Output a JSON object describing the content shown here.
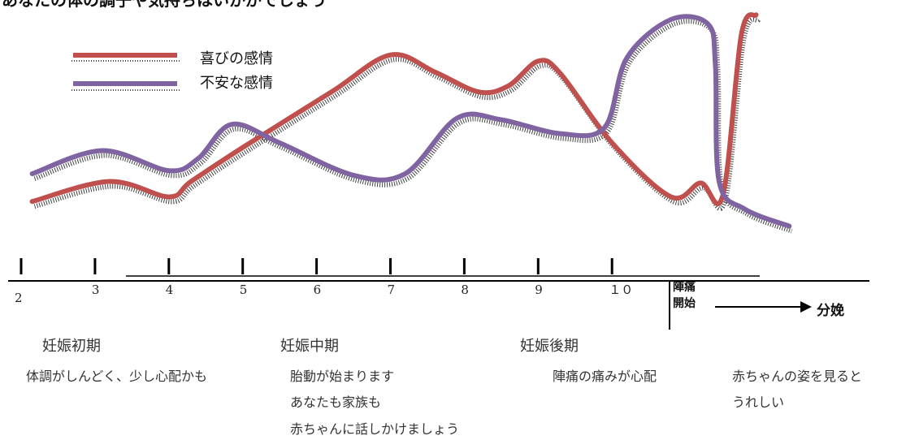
{
  "header": {
    "title": "あなたの体の調子や気持ちはいかがでしょう"
  },
  "legend": {
    "joy": "喜びの感情",
    "anxiety": "不安な感情"
  },
  "timeline": {
    "ticks": [
      "2",
      "3",
      "4",
      "5",
      "6",
      "7",
      "8",
      "9",
      "１０"
    ],
    "labor_start": [
      "陣痛",
      "開始"
    ],
    "delivery": "分娩"
  },
  "phases": [
    {
      "name": "妊娠初期",
      "lines": [
        "体調がしんどく、少し心配かも"
      ]
    },
    {
      "name": "妊娠中期",
      "lines": [
        "胎動が始まります",
        "あなたも家族も",
        "赤ちゃんに話しかけましょう"
      ]
    },
    {
      "name": "妊娠後期",
      "lines": [
        "陣痛の痛みが心配"
      ]
    },
    {
      "name": "",
      "lines": [
        "赤ちゃんの姿を見ると",
        "うれしい"
      ]
    }
  ],
  "chart_data": {
    "type": "line",
    "x_unit": "month",
    "x_ticks": [
      2,
      3,
      4,
      5,
      6,
      7,
      8,
      9,
      10
    ],
    "series": [
      {
        "name": "喜びの感情",
        "color": "#c0504d",
        "points": [
          [
            2.15,
            22
          ],
          [
            3.2,
            35
          ],
          [
            4.0,
            25
          ],
          [
            4.3,
            35
          ],
          [
            5.0,
            57
          ],
          [
            6.2,
            93
          ],
          [
            7.0,
            117
          ],
          [
            7.6,
            106
          ],
          [
            8.2,
            93
          ],
          [
            8.6,
            97
          ],
          [
            9.0,
            113
          ],
          [
            9.3,
            105
          ],
          [
            10.0,
            60
          ],
          [
            10.8,
            25
          ],
          [
            11.2,
            34
          ],
          [
            11.5,
            26
          ],
          [
            11.75,
            130
          ],
          [
            11.95,
            143
          ]
        ]
      },
      {
        "name": "不安な感情",
        "color": "#8064a2",
        "points": [
          [
            2.15,
            40
          ],
          [
            3.1,
            55
          ],
          [
            4.0,
            42
          ],
          [
            4.4,
            50
          ],
          [
            4.85,
            72
          ],
          [
            5.5,
            60
          ],
          [
            6.5,
            39
          ],
          [
            7.2,
            40
          ],
          [
            7.9,
            76
          ],
          [
            8.5,
            75
          ],
          [
            9.3,
            66
          ],
          [
            9.9,
            70
          ],
          [
            10.2,
            115
          ],
          [
            10.8,
            140
          ],
          [
            11.3,
            137
          ],
          [
            11.4,
            110
          ],
          [
            11.45,
            35
          ],
          [
            11.8,
            17
          ],
          [
            12.4,
            6
          ]
        ]
      }
    ]
  }
}
